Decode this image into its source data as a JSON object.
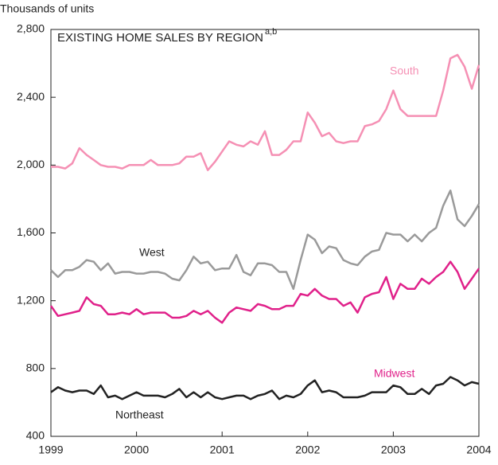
{
  "chart_data": {
    "type": "line",
    "title": "EXISTING HOME SALES BY REGION",
    "title_superscript": "a,b",
    "ylabel": "Thousands of units",
    "x": [
      1999,
      1999.083,
      1999.167,
      1999.25,
      1999.333,
      1999.417,
      1999.5,
      1999.583,
      1999.667,
      1999.75,
      1999.833,
      1999.917,
      2000,
      2000.083,
      2000.167,
      2000.25,
      2000.333,
      2000.417,
      2000.5,
      2000.583,
      2000.667,
      2000.75,
      2000.833,
      2000.917,
      2001,
      2001.083,
      2001.167,
      2001.25,
      2001.333,
      2001.417,
      2001.5,
      2001.583,
      2001.667,
      2001.75,
      2001.833,
      2001.917,
      2002,
      2002.083,
      2002.167,
      2002.25,
      2002.333,
      2002.417,
      2002.5,
      2002.583,
      2002.667,
      2002.75,
      2002.833,
      2002.917,
      2003,
      2003.083,
      2003.167,
      2003.25,
      2003.333,
      2003.417,
      2003.5,
      2003.583,
      2003.667,
      2003.75,
      2003.833,
      2003.917,
      2004
    ],
    "series": [
      {
        "name": "South",
        "color": "#f590b4",
        "values": [
          1990,
          1990,
          1980,
          2010,
          2100,
          2060,
          2030,
          2000,
          1990,
          1990,
          1980,
          2000,
          2000,
          2000,
          2030,
          2000,
          2000,
          2000,
          2010,
          2050,
          2050,
          2070,
          1970,
          2020,
          2080,
          2140,
          2120,
          2110,
          2140,
          2120,
          2200,
          2060,
          2060,
          2090,
          2140,
          2140,
          2310,
          2250,
          2170,
          2190,
          2140,
          2130,
          2140,
          2140,
          2230,
          2240,
          2260,
          2330,
          2440,
          2330,
          2290,
          2290,
          2290,
          2290,
          2290,
          2440,
          2630,
          2650,
          2580,
          2450,
          2590
        ]
      },
      {
        "name": "West",
        "color": "#9a9a9a",
        "values": [
          1380,
          1340,
          1380,
          1380,
          1400,
          1440,
          1430,
          1380,
          1420,
          1360,
          1370,
          1370,
          1360,
          1360,
          1370,
          1370,
          1360,
          1330,
          1320,
          1380,
          1460,
          1420,
          1430,
          1380,
          1390,
          1390,
          1470,
          1370,
          1350,
          1420,
          1420,
          1410,
          1370,
          1370,
          1270,
          1440,
          1590,
          1560,
          1480,
          1520,
          1510,
          1440,
          1420,
          1410,
          1460,
          1490,
          1500,
          1600,
          1590,
          1590,
          1550,
          1590,
          1550,
          1600,
          1630,
          1760,
          1850,
          1680,
          1640,
          1700,
          1770
        ]
      },
      {
        "name": "Midwest",
        "color": "#e0218a",
        "values": [
          1170,
          1110,
          1120,
          1130,
          1140,
          1220,
          1180,
          1170,
          1120,
          1120,
          1130,
          1120,
          1150,
          1120,
          1130,
          1130,
          1130,
          1100,
          1100,
          1110,
          1140,
          1120,
          1140,
          1100,
          1070,
          1130,
          1160,
          1150,
          1140,
          1180,
          1170,
          1150,
          1150,
          1170,
          1170,
          1240,
          1230,
          1270,
          1230,
          1210,
          1210,
          1170,
          1190,
          1130,
          1220,
          1240,
          1250,
          1340,
          1210,
          1300,
          1270,
          1270,
          1330,
          1300,
          1340,
          1370,
          1430,
          1370,
          1270,
          1330,
          1390
        ]
      },
      {
        "name": "Northeast",
        "color": "#222222",
        "values": [
          660,
          690,
          670,
          660,
          670,
          670,
          650,
          700,
          630,
          640,
          620,
          640,
          660,
          640,
          640,
          640,
          630,
          650,
          680,
          630,
          660,
          630,
          660,
          630,
          620,
          630,
          640,
          640,
          620,
          640,
          650,
          670,
          620,
          640,
          630,
          650,
          700,
          730,
          660,
          670,
          660,
          630,
          630,
          630,
          640,
          660,
          660,
          660,
          700,
          690,
          650,
          650,
          680,
          650,
          700,
          710,
          750,
          730,
          700,
          720,
          710
        ]
      }
    ],
    "xlim": [
      1999,
      2004
    ],
    "xticks": [
      1999,
      2000,
      2001,
      2002,
      2003,
      2004
    ],
    "ylim": [
      400,
      2800
    ],
    "yticks": [
      400,
      800,
      {
        "value": 1200,
        "label": "1,200"
      },
      {
        "value": 1600,
        "label": "1,600"
      },
      {
        "value": 2000,
        "label": "2,000"
      },
      {
        "value": 2400,
        "label": "2,400"
      },
      {
        "value": 2800,
        "label": "2,800"
      }
    ]
  }
}
